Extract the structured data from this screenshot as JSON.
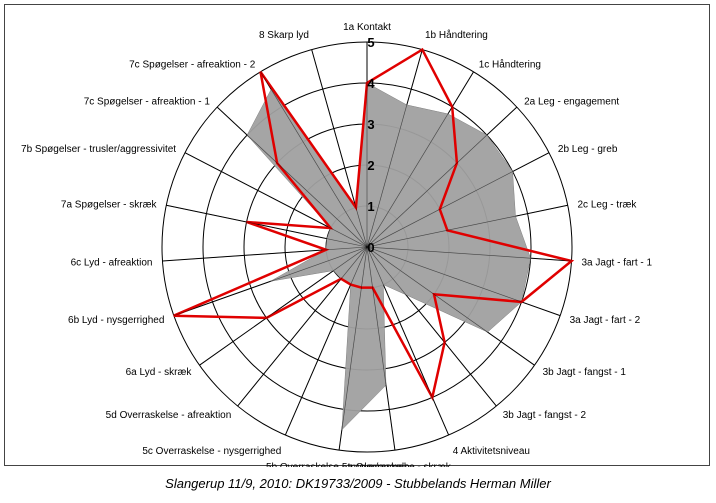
{
  "caption": "Slangerup 11/9, 2010: DK19733/2009 - Stubbelands Herman Miller",
  "chart_data": {
    "type": "radar",
    "categories": [
      "1a Kontakt",
      "1b Håndtering",
      "1c Håndtering",
      "2a Leg - engagement",
      "2b Leg - greb",
      "2c Leg - træk",
      "3a Jagt - fart - 1",
      "3a Jagt - fart - 2",
      "3b Jagt - fangst - 1",
      "3b Jagt - fangst - 2",
      "4 Aktivitetsniveau",
      "5a Overraskelse - skræk",
      "5b Overraskelse - trusler/angreb",
      "5c Overraskelse - nysgerrighed",
      "5d Overraskelse - afreaktion",
      "6a Lyd - skræk",
      "6b Lyd - nysgerrighed",
      "6c Lyd - afreaktion",
      "7a Spøgelser - skræk",
      "7b Spøgelser - trusler/aggressivitet",
      "7c Spøgelser - afreaktion - 1",
      "7c Spøgelser - afreaktion - 2",
      "8 Skarp lyd"
    ],
    "rlim": [
      0,
      5
    ],
    "ticks": [
      "0",
      "1",
      "2",
      "3",
      "4",
      "5"
    ],
    "series": [
      {
        "style": "filled-gray",
        "color": "#a0a0a0",
        "values": [
          4.0,
          3.6,
          3.8,
          4.0,
          4.0,
          3.7,
          4.0,
          4.0,
          3.6,
          1.5,
          1.0,
          3.4,
          4.5,
          1.0,
          1.0,
          1.0,
          2.5,
          1.0,
          1.0,
          1.0,
          4.0,
          4.5,
          1.0
        ]
      },
      {
        "style": "red-line",
        "color": "#e00000",
        "values": [
          4.0,
          5.0,
          4.0,
          3.0,
          2.0,
          2.0,
          5.0,
          4.0,
          2.0,
          3.0,
          4.0,
          1.0,
          1.0,
          1.0,
          1.0,
          3.0,
          5.0,
          1.0,
          3.0,
          1.0,
          3.0,
          5.0,
          1.0
        ]
      }
    ],
    "grid": true,
    "legend": "none"
  }
}
